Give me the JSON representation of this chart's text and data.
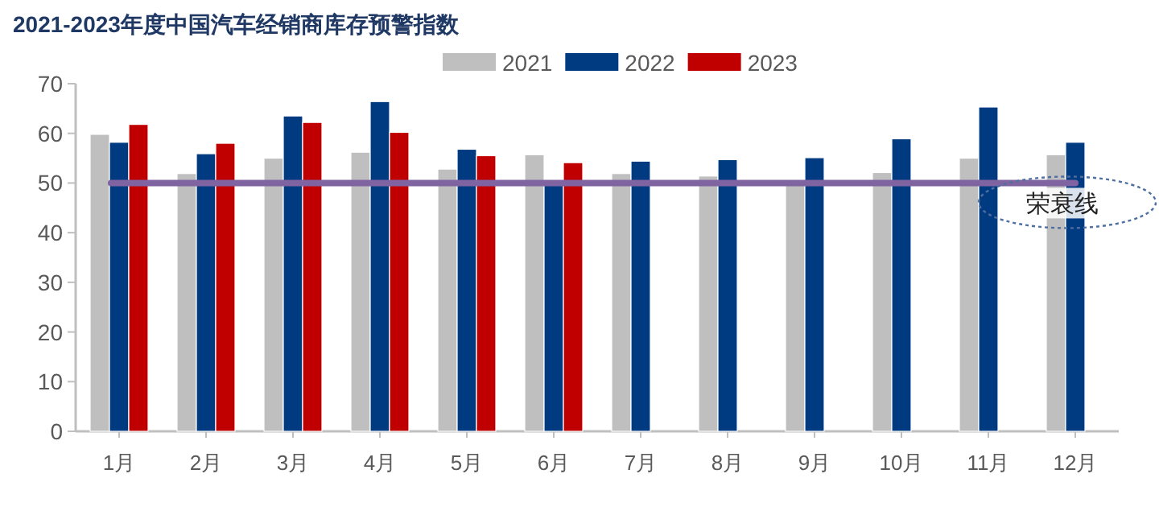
{
  "chart_data": {
    "type": "bar",
    "title": "2021-2023年度中国汽车经销商库存预警指数",
    "categories": [
      "1月",
      "2月",
      "3月",
      "4月",
      "5月",
      "6月",
      "7月",
      "8月",
      "9月",
      "10月",
      "11月",
      "12月"
    ],
    "series": [
      {
        "name": "2021",
        "color": "#bfbfbf",
        "values": [
          59.8,
          51.9,
          55.0,
          56.2,
          52.8,
          55.7,
          51.9,
          51.4,
          50.2,
          52.1,
          55.0,
          55.7
        ]
      },
      {
        "name": "2022",
        "color": "#003a80",
        "values": [
          58.2,
          55.9,
          63.5,
          66.4,
          56.8,
          50.2,
          54.4,
          54.7,
          55.1,
          58.9,
          65.3,
          58.2
        ]
      },
      {
        "name": "2023",
        "color": "#c00000",
        "values": [
          61.8,
          58.0,
          62.2,
          60.2,
          55.5,
          54.1,
          null,
          null,
          null,
          null,
          null,
          null
        ]
      }
    ],
    "ylim": [
      0,
      70
    ],
    "yticks": [
      0,
      10,
      20,
      30,
      40,
      50,
      60,
      70
    ],
    "ref_lines": [
      {
        "axis": "y",
        "value": 50,
        "label": "荣衰线",
        "color": "#8064a2"
      }
    ],
    "legend": "top right",
    "grid": false
  }
}
